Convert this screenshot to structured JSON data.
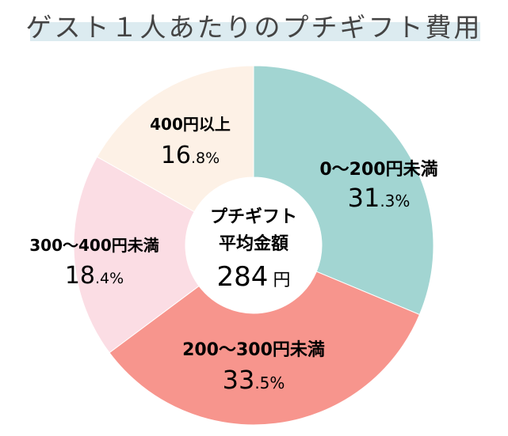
{
  "chart_data": {
    "type": "pie",
    "title": "ゲスト１人あたりのプチギフト費用",
    "center": {
      "line1": "プチギフト",
      "line2": "平均金額",
      "amount": "284",
      "unit": "円"
    },
    "slices": [
      {
        "label": "0〜200円未満",
        "value": 31.3,
        "int": "31",
        "dec": ".3%",
        "color": "#a2d5d2"
      },
      {
        "label": "200〜300円未満",
        "value": 33.5,
        "int": "33",
        "dec": ".5%",
        "color": "#f7958d"
      },
      {
        "label": "300〜400円未満",
        "value": 18.4,
        "int": "18",
        "dec": ".4%",
        "color": "#fbdde4"
      },
      {
        "label": "400円以上",
        "value": 16.8,
        "int": "16",
        "dec": ".8%",
        "color": "#fdf1e6"
      }
    ]
  }
}
